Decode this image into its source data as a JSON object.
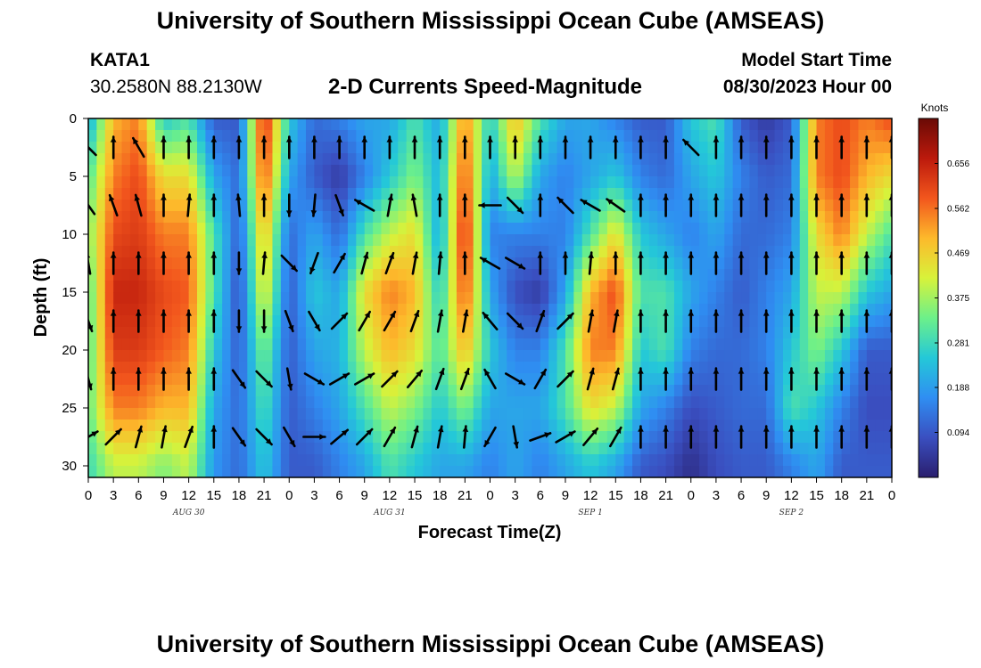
{
  "title": "University of Southern Mississippi Ocean Cube (AMSEAS)",
  "station": {
    "id": "KATA1",
    "coords": "30.2580N  88.2130W"
  },
  "subtitle": "2-D Currents Speed-Magnitude",
  "model_start": {
    "label": "Model Start Time",
    "value": "08/30/2023 Hour 00"
  },
  "footer_title": "University of Southern Mississippi Ocean Cube (AMSEAS)",
  "chart_data": {
    "type": "heatmap",
    "xlabel": "Forecast Time(Z)",
    "ylabel": "Depth (ft)",
    "x_ticks": [
      "0",
      "3",
      "6",
      "9",
      "12",
      "15",
      "18",
      "21",
      "0",
      "3",
      "6",
      "9",
      "12",
      "15",
      "18",
      "21",
      "0",
      "3",
      "6",
      "9",
      "12",
      "15",
      "18",
      "21",
      "0",
      "3",
      "6",
      "9",
      "12",
      "15",
      "18",
      "21",
      "0"
    ],
    "x_range_hours": [
      0,
      96
    ],
    "y_ticks": [
      0,
      5,
      10,
      15,
      20,
      25,
      30
    ],
    "y_range_ft": [
      0,
      31
    ],
    "y_inverted": true,
    "date_labels": [
      {
        "text": "AUG 30",
        "hour": 12
      },
      {
        "text": "AUG 31",
        "hour": 36
      },
      {
        "text": "SEP 1",
        "hour": 60
      },
      {
        "text": "SEP 2",
        "hour": 84
      }
    ],
    "colorbar": {
      "title": "Knots",
      "ticks": [
        "0.656",
        "0.562",
        "0.469",
        "0.375",
        "0.281",
        "0.188",
        "0.094"
      ],
      "range": [
        0,
        0.75
      ],
      "colors": [
        "#2a1e6e",
        "#3a4fc0",
        "#2f8ef2",
        "#24c8d8",
        "#6cf08a",
        "#d8f23a",
        "#fdb92b",
        "#f2561d",
        "#bc1a0c",
        "#6a0a05"
      ]
    },
    "speed_columns": [
      {
        "hour": 0,
        "speeds": [
          0.2,
          0.3,
          0.35,
          0.3,
          0.3,
          0.32,
          0.28
        ]
      },
      {
        "hour": 3,
        "speeds": [
          0.5,
          0.55,
          0.6,
          0.65,
          0.62,
          0.55,
          0.4
        ]
      },
      {
        "hour": 6,
        "speeds": [
          0.55,
          0.6,
          0.62,
          0.65,
          0.62,
          0.55,
          0.4
        ]
      },
      {
        "hour": 9,
        "speeds": [
          0.25,
          0.45,
          0.55,
          0.6,
          0.58,
          0.5,
          0.35
        ]
      },
      {
        "hour": 12,
        "speeds": [
          0.3,
          0.45,
          0.55,
          0.58,
          0.55,
          0.5,
          0.4
        ]
      },
      {
        "hour": 15,
        "speeds": [
          0.1,
          0.2,
          0.3,
          0.3,
          0.25,
          0.2,
          0.18
        ]
      },
      {
        "hour": 18,
        "speeds": [
          0.1,
          0.12,
          0.1,
          0.08,
          0.1,
          0.12,
          0.12
        ]
      },
      {
        "hour": 21,
        "speeds": [
          0.65,
          0.6,
          0.5,
          0.45,
          0.35,
          0.3,
          0.25
        ]
      },
      {
        "hour": 24,
        "speeds": [
          0.25,
          0.2,
          0.12,
          0.1,
          0.1,
          0.1,
          0.1
        ]
      },
      {
        "hour": 27,
        "speeds": [
          0.12,
          0.1,
          0.2,
          0.25,
          0.2,
          0.15,
          0.1
        ]
      },
      {
        "hour": 30,
        "speeds": [
          0.15,
          0.05,
          0.12,
          0.2,
          0.22,
          0.2,
          0.15
        ]
      },
      {
        "hour": 33,
        "speeds": [
          0.2,
          0.15,
          0.3,
          0.45,
          0.4,
          0.3,
          0.2
        ]
      },
      {
        "hour": 36,
        "speeds": [
          0.2,
          0.25,
          0.4,
          0.55,
          0.5,
          0.4,
          0.3
        ]
      },
      {
        "hour": 39,
        "speeds": [
          0.3,
          0.35,
          0.45,
          0.5,
          0.45,
          0.35,
          0.25
        ]
      },
      {
        "hour": 42,
        "speeds": [
          0.2,
          0.22,
          0.2,
          0.25,
          0.3,
          0.25,
          0.2
        ]
      },
      {
        "hour": 45,
        "speeds": [
          0.55,
          0.6,
          0.65,
          0.6,
          0.5,
          0.35,
          0.2
        ]
      },
      {
        "hour": 48,
        "speeds": [
          0.25,
          0.2,
          0.15,
          0.2,
          0.25,
          0.2,
          0.15
        ]
      },
      {
        "hour": 51,
        "speeds": [
          0.5,
          0.4,
          0.15,
          0.08,
          0.15,
          0.2,
          0.2
        ]
      },
      {
        "hour": 54,
        "speeds": [
          0.3,
          0.2,
          0.15,
          0.05,
          0.15,
          0.2,
          0.15
        ]
      },
      {
        "hour": 57,
        "speeds": [
          0.2,
          0.15,
          0.15,
          0.2,
          0.3,
          0.3,
          0.2
        ]
      },
      {
        "hour": 60,
        "speeds": [
          0.2,
          0.2,
          0.3,
          0.5,
          0.55,
          0.45,
          0.25
        ]
      },
      {
        "hour": 63,
        "speeds": [
          0.15,
          0.25,
          0.45,
          0.6,
          0.55,
          0.4,
          0.2
        ]
      },
      {
        "hour": 66,
        "speeds": [
          0.1,
          0.15,
          0.25,
          0.3,
          0.25,
          0.2,
          0.1
        ]
      },
      {
        "hour": 69,
        "speeds": [
          0.1,
          0.12,
          0.2,
          0.3,
          0.3,
          0.15,
          0.08
        ]
      },
      {
        "hour": 72,
        "speeds": [
          0.25,
          0.2,
          0.15,
          0.2,
          0.15,
          0.08,
          0.03
        ]
      },
      {
        "hour": 75,
        "speeds": [
          0.3,
          0.25,
          0.2,
          0.15,
          0.12,
          0.1,
          0.08
        ]
      },
      {
        "hour": 78,
        "speeds": [
          0.1,
          0.15,
          0.12,
          0.1,
          0.12,
          0.12,
          0.1
        ]
      },
      {
        "hour": 81,
        "speeds": [
          0.05,
          0.1,
          0.12,
          0.15,
          0.15,
          0.12,
          0.1
        ]
      },
      {
        "hour": 84,
        "speeds": [
          0.1,
          0.12,
          0.15,
          0.2,
          0.25,
          0.3,
          0.15
        ]
      },
      {
        "hour": 87,
        "speeds": [
          0.55,
          0.55,
          0.45,
          0.4,
          0.35,
          0.25,
          0.2
        ]
      },
      {
        "hour": 90,
        "speeds": [
          0.6,
          0.6,
          0.55,
          0.4,
          0.25,
          0.15,
          0.1
        ]
      },
      {
        "hour": 93,
        "speeds": [
          0.55,
          0.5,
          0.4,
          0.25,
          0.1,
          0.08,
          0.1
        ]
      },
      {
        "hour": 96,
        "speeds": [
          0.6,
          0.45,
          0.3,
          0.2,
          0.1,
          0.08,
          0.1
        ]
      }
    ],
    "speed_depths_ft": [
      0,
      5,
      10,
      15,
      20,
      25,
      30
    ],
    "vectors": {
      "hours": [
        0,
        3,
        6,
        9,
        12,
        15,
        18,
        21,
        24,
        27,
        30,
        33,
        36,
        39,
        42,
        45,
        48,
        51,
        54,
        57,
        60,
        63,
        66,
        69,
        72,
        75,
        78,
        81,
        84,
        87,
        90,
        93,
        96
      ],
      "depths_ft": [
        2.5,
        7.5,
        12.5,
        17.5,
        22.5,
        27.5
      ],
      "direction_deg": [
        [
          315,
          0,
          330,
          0,
          0,
          0,
          0,
          0,
          0,
          0,
          0,
          0,
          0,
          0,
          0,
          0,
          0,
          0,
          0,
          0,
          0,
          0,
          0,
          0,
          315,
          0,
          0,
          0,
          0,
          0,
          0,
          0,
          0
        ],
        [
          325,
          340,
          345,
          0,
          5,
          0,
          355,
          0,
          180,
          185,
          160,
          300,
          10,
          350,
          0,
          0,
          270,
          135,
          0,
          315,
          300,
          305,
          0,
          0,
          0,
          0,
          0,
          0,
          0,
          0,
          0,
          0,
          0
        ],
        [
          350,
          0,
          0,
          0,
          0,
          0,
          180,
          5,
          135,
          200,
          30,
          15,
          20,
          10,
          5,
          0,
          300,
          120,
          0,
          0,
          5,
          0,
          0,
          0,
          0,
          0,
          0,
          0,
          0,
          0,
          0,
          0,
          0
        ],
        [
          160,
          0,
          0,
          0,
          0,
          0,
          180,
          180,
          160,
          150,
          45,
          30,
          30,
          20,
          10,
          10,
          320,
          135,
          20,
          45,
          10,
          10,
          0,
          0,
          0,
          0,
          0,
          0,
          0,
          0,
          0,
          0,
          0
        ],
        [
          165,
          0,
          0,
          0,
          0,
          0,
          145,
          135,
          170,
          120,
          60,
          60,
          45,
          40,
          20,
          20,
          330,
          120,
          30,
          45,
          15,
          15,
          0,
          0,
          0,
          0,
          0,
          0,
          0,
          0,
          0,
          0,
          0
        ],
        [
          60,
          45,
          15,
          10,
          20,
          0,
          145,
          135,
          150,
          90,
          50,
          45,
          30,
          15,
          10,
          5,
          210,
          170,
          70,
          60,
          40,
          30,
          0,
          0,
          0,
          0,
          0,
          0,
          0,
          0,
          0,
          0,
          0
        ]
      ]
    }
  }
}
